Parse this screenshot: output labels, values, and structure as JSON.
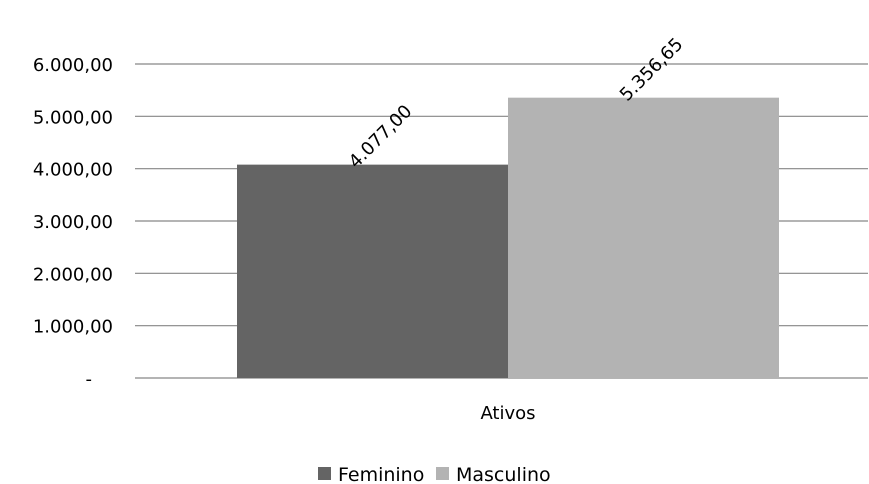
{
  "chart_data": {
    "type": "bar",
    "categories": [
      "Ativos"
    ],
    "series": [
      {
        "name": "Feminino",
        "values": [
          4077.0
        ],
        "color": "#646464",
        "label": "4.077,00"
      },
      {
        "name": "Masculino",
        "values": [
          5356.65
        ],
        "color": "#b3b3b3",
        "label": "5.356,65"
      }
    ],
    "ylim": [
      0,
      6000
    ],
    "y_ticks": [
      {
        "value": 0,
        "label": "-"
      },
      {
        "value": 1000,
        "label": "1.000,00"
      },
      {
        "value": 2000,
        "label": "2.000,00"
      },
      {
        "value": 3000,
        "label": "3.000,00"
      },
      {
        "value": 4000,
        "label": "4.000,00"
      },
      {
        "value": 5000,
        "label": "5.000,00"
      },
      {
        "value": 6000,
        "label": "6.000,00"
      }
    ],
    "grid": true,
    "legend_position": "bottom",
    "gridline_color": "#868686"
  }
}
